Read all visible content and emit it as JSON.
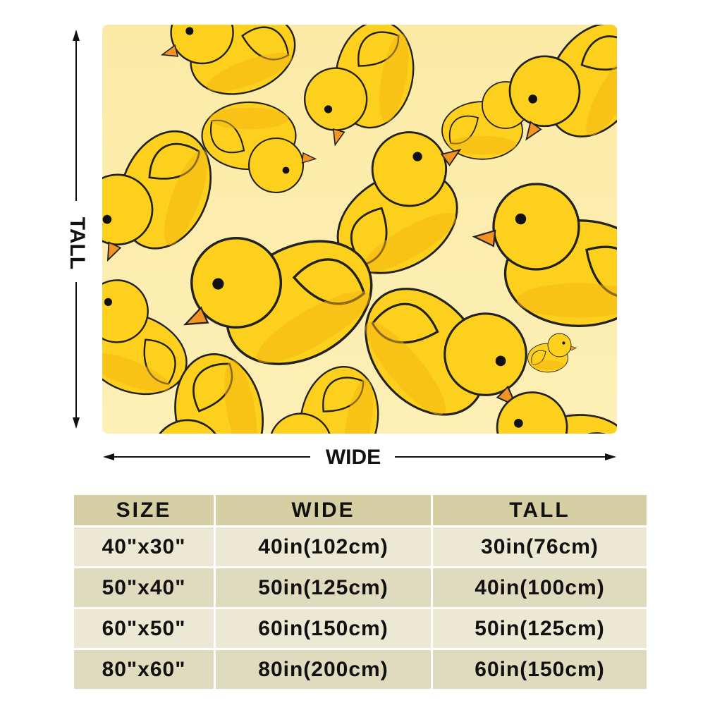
{
  "dimensions": {
    "height_label": "TALL",
    "width_label": "WIDE"
  },
  "table": {
    "header": [
      "SIZE",
      "WIDE",
      "TALL"
    ],
    "rows": [
      [
        "40\"x30\"",
        "40in(102cm)",
        "30in(76cm)"
      ],
      [
        "50\"x40\"",
        "50in(125cm)",
        "40in(100cm)"
      ],
      [
        "60\"x50\"",
        "60in(150cm)",
        "50in(125cm)"
      ],
      [
        "80\"x60\"",
        "80in(200cm)",
        "60in(150cm)"
      ]
    ]
  }
}
